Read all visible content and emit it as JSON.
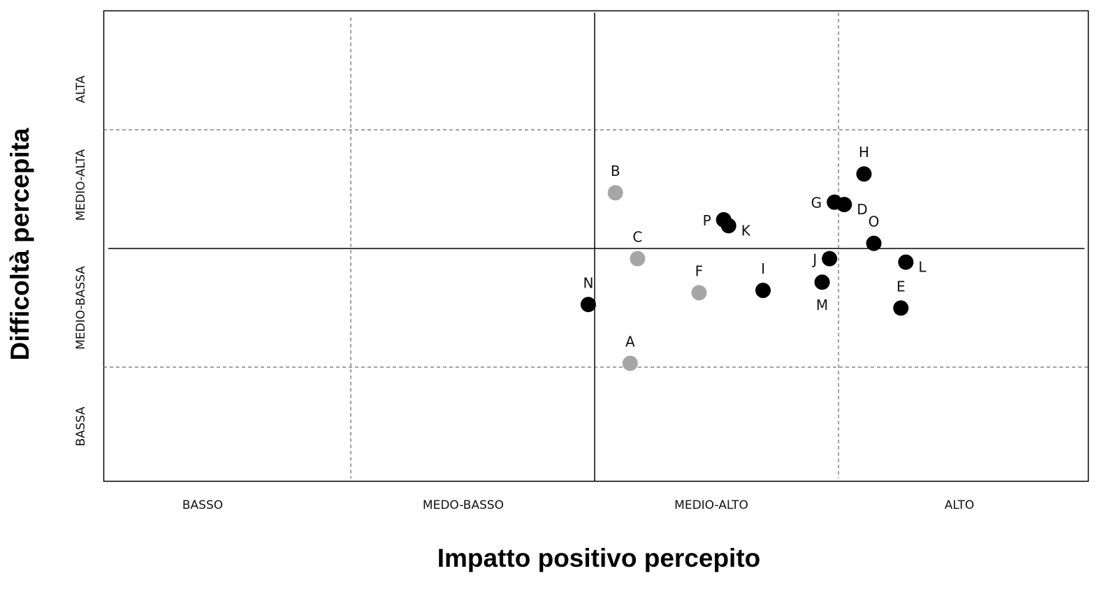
{
  "chart_data": {
    "type": "scatter",
    "title": "",
    "xlabel": "Impatto positivo percepito",
    "ylabel": "Difficoltà percepita",
    "xlim": [
      0,
      4
    ],
    "ylim": [
      0,
      4
    ],
    "x_tick_labels": [
      "BASSO",
      "MEDO-BASSO",
      "MEDIO-ALTO",
      "ALTO"
    ],
    "y_tick_labels": [
      "BASSA",
      "MEDIO-BASSA",
      "MEDIO-ALTA",
      "ALTA"
    ],
    "grid": "quadrant lines at 1, 2 (solid), 3",
    "colors": {
      "gray": "#a6a6a6",
      "black": "#000000"
    },
    "points": [
      {
        "label": "A",
        "x": 2.14,
        "y": 1.0,
        "color": "gray",
        "label_pos": "top"
      },
      {
        "label": "B",
        "x": 2.08,
        "y": 2.45,
        "color": "gray",
        "label_pos": "top"
      },
      {
        "label": "C",
        "x": 2.17,
        "y": 1.89,
        "color": "gray",
        "label_pos": "top"
      },
      {
        "label": "F",
        "x": 2.42,
        "y": 1.6,
        "color": "gray",
        "label_pos": "top"
      },
      {
        "label": "N",
        "x": 1.97,
        "y": 1.5,
        "color": "black",
        "label_pos": "top"
      },
      {
        "label": "I",
        "x": 2.68,
        "y": 1.62,
        "color": "black",
        "label_pos": "top"
      },
      {
        "label": "P",
        "x": 2.52,
        "y": 2.22,
        "color": "black",
        "label_pos": "left"
      },
      {
        "label": "K",
        "x": 2.54,
        "y": 2.17,
        "color": "black",
        "label_pos": "right"
      },
      {
        "label": "J",
        "x": 2.95,
        "y": 1.89,
        "color": "black",
        "label_pos": "left"
      },
      {
        "label": "M",
        "x": 2.92,
        "y": 1.69,
        "color": "black",
        "label_pos": "bottom"
      },
      {
        "label": "G",
        "x": 2.97,
        "y": 2.37,
        "color": "black",
        "label_pos": "left"
      },
      {
        "label": "D",
        "x": 3.01,
        "y": 2.35,
        "color": "black",
        "label_pos": "right"
      },
      {
        "label": "H",
        "x": 3.09,
        "y": 2.61,
        "color": "black",
        "label_pos": "top"
      },
      {
        "label": "O",
        "x": 3.13,
        "y": 2.02,
        "color": "black",
        "label_pos": "top"
      },
      {
        "label": "L",
        "x": 3.26,
        "y": 1.86,
        "color": "black",
        "label_pos": "right"
      },
      {
        "label": "E",
        "x": 3.24,
        "y": 1.47,
        "color": "black",
        "label_pos": "top"
      }
    ]
  }
}
